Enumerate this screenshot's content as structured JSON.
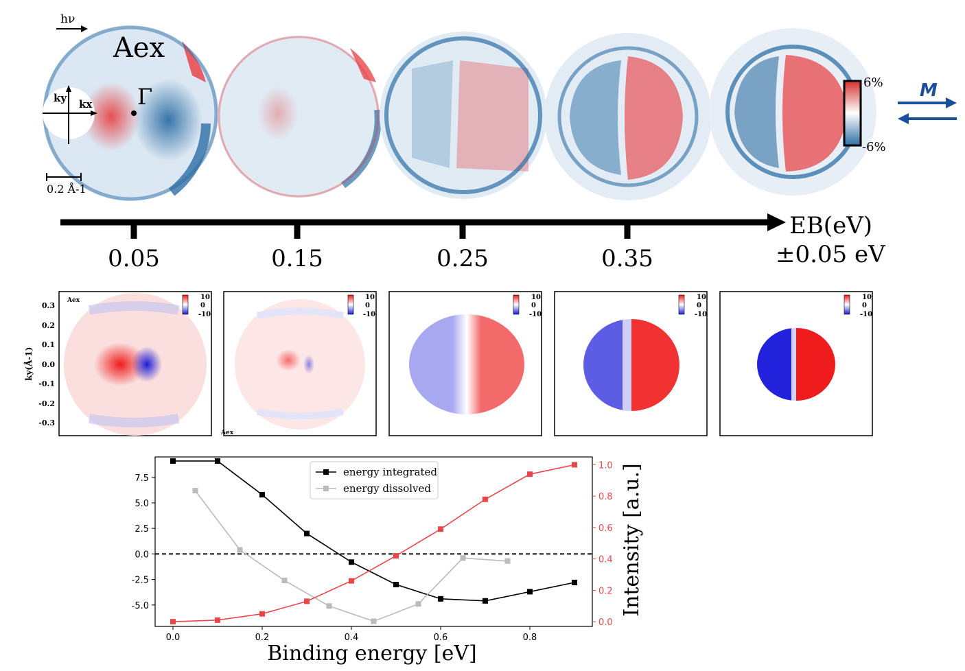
{
  "top_maps": {
    "hv_label": "hν",
    "aex_label": "Aex",
    "ky_label": "ky",
    "kx_label": "kx",
    "gamma_label": "Γ",
    "scale_label": "0.2 Å-1",
    "colorbar_max": "6%",
    "colorbar_min": "-6%",
    "arrow_symbol": "M",
    "colors": {
      "red": "#e8474a",
      "blue": "#2e6fa5"
    }
  },
  "energy_axis": {
    "label": "EB(eV)",
    "window": "±0.05 eV",
    "ticks": [
      "0.05",
      "0.15",
      "0.25",
      "0.35"
    ]
  },
  "sim_panels": {
    "ylabel": "ky(Å-1)",
    "yticks": [
      "0.3",
      "0.2",
      "0.1",
      "0.0",
      "-0.1",
      "-0.2",
      "-0.3"
    ],
    "cb_ticks": [
      "10",
      "0",
      "-10"
    ],
    "aex_top": "Aex",
    "aex_bottom": "Aex"
  },
  "chart_data": {
    "type": "line",
    "xlabel": "Binding energy [eV]",
    "ylabel_right": "Intensity [a.u.]",
    "xticks": [
      "0.0",
      "0.2",
      "0.4",
      "0.6",
      "0.8"
    ],
    "yticks_left": [
      "7.5",
      "5.0",
      "2.5",
      "0.0",
      "-2.5",
      "-5.0"
    ],
    "yticks_right": [
      "1.0",
      "0.8",
      "0.6",
      "0.4",
      "0.2",
      "0.0"
    ],
    "xlim": [
      -0.04,
      0.94
    ],
    "ylim_left": [
      -7.1,
      9.5
    ],
    "ylim_right": [
      -0.03,
      1.05
    ],
    "zero_line": 0.0,
    "legend_position": "top-center",
    "series": [
      {
        "name": "energy integrated",
        "axis": "left",
        "color": "#000000",
        "x": [
          0.0,
          0.1,
          0.2,
          0.3,
          0.4,
          0.5,
          0.6,
          0.7,
          0.8,
          0.9
        ],
        "y": [
          9.1,
          9.1,
          5.8,
          2.0,
          -0.8,
          -3.0,
          -4.4,
          -4.6,
          -3.7,
          -2.8
        ]
      },
      {
        "name": "energy dissolved",
        "axis": "left",
        "color": "#bbbbbb",
        "x": [
          0.05,
          0.15,
          0.25,
          0.35,
          0.45,
          0.55,
          0.65,
          0.75
        ],
        "y": [
          6.2,
          0.4,
          -2.6,
          -5.1,
          -6.6,
          -4.9,
          -0.4,
          -0.7
        ]
      },
      {
        "name": "",
        "axis": "right",
        "color": "#e8474a",
        "x": [
          0.0,
          0.1,
          0.2,
          0.3,
          0.4,
          0.5,
          0.6,
          0.7,
          0.8,
          0.9
        ],
        "y": [
          0.0,
          0.01,
          0.05,
          0.13,
          0.26,
          0.42,
          0.59,
          0.78,
          0.94,
          1.0
        ]
      }
    ]
  }
}
